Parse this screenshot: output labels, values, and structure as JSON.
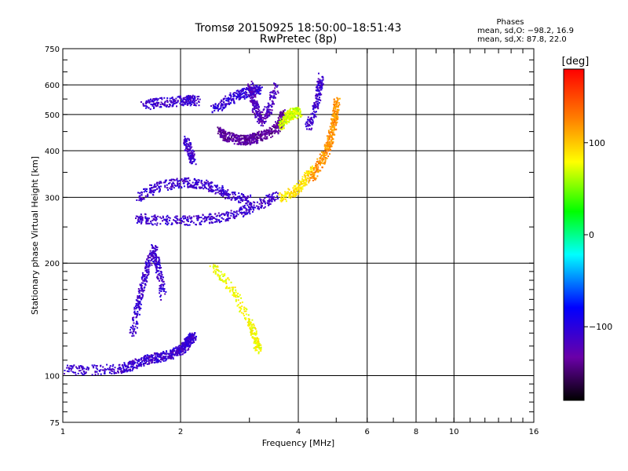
{
  "chart_data": {
    "type": "scatter",
    "title": "Tromsø 20150925 18:50:00–18:51:43",
    "subtitle": "RwPretec (8p)",
    "xlabel": "Frequency [MHz]",
    "ylabel": "Stationary phase Virtual Height [km]",
    "x_scale": "log",
    "y_scale": "log",
    "xlim": [
      1,
      16
    ],
    "ylim": [
      75,
      750
    ],
    "x_ticks": [
      1,
      2,
      4,
      6,
      8,
      10,
      16
    ],
    "x_tick_labels": [
      "1",
      "2",
      "4",
      "6",
      "8",
      "10",
      "16"
    ],
    "y_ticks": [
      75,
      100,
      200,
      300,
      400,
      500,
      600,
      750
    ],
    "y_tick_labels": [
      "75",
      "100",
      "200",
      "300",
      "400",
      "500",
      "600",
      "750"
    ],
    "grid": true,
    "stats": {
      "heading": "Phases",
      "line1": "mean, sd,O: −98.2, 16.9",
      "line2": "mean, sd,X:  87.8, 22.0"
    },
    "colorbar": {
      "label": "[deg]",
      "range": [
        -180,
        180
      ],
      "ticks": [
        100,
        0,
        -100
      ],
      "tick_labels": [
        "100",
        "0",
        "−100"
      ]
    },
    "traces": [
      {
        "x": [
          1.0,
          1.2,
          1.4,
          1.5,
          1.6,
          1.7,
          1.8,
          1.9,
          2.0,
          2.05,
          2.1,
          2.15
        ],
        "y": [
          104,
          104,
          105,
          107,
          110,
          112,
          113,
          115,
          118,
          121,
          125,
          128
        ],
        "phase": -110
      },
      {
        "x": [
          1.5,
          1.55,
          1.6,
          1.65,
          1.7,
          1.75,
          1.8
        ],
        "y": [
          130,
          155,
          175,
          200,
          220,
          195,
          165
        ],
        "phase": -110
      },
      {
        "x": [
          1.55,
          1.7,
          2.0,
          2.3,
          2.6,
          2.9,
          3.2,
          3.5
        ],
        "y": [
          265,
          262,
          261,
          263,
          268,
          277,
          290,
          303
        ],
        "phase": -110
      },
      {
        "x": [
          1.55,
          1.7,
          1.9,
          2.1,
          2.3,
          2.5,
          2.7,
          3.0
        ],
        "y": [
          300,
          318,
          328,
          330,
          325,
          315,
          305,
          295
        ],
        "phase": -110
      },
      {
        "x": [
          1.6,
          1.75,
          1.95,
          2.1,
          2.2
        ],
        "y": [
          530,
          540,
          545,
          548,
          545
        ],
        "phase": -110
      },
      {
        "x": [
          2.05,
          2.1,
          2.15
        ],
        "y": [
          430,
          400,
          380
        ],
        "phase": -110
      },
      {
        "x": [
          2.4,
          2.6,
          2.8,
          3.0,
          3.2
        ],
        "y": [
          515,
          545,
          565,
          580,
          585
        ],
        "phase": -105
      },
      {
        "x": [
          2.5,
          2.6,
          2.75,
          2.9,
          3.0,
          3.1,
          3.3,
          3.5,
          3.6,
          3.65
        ],
        "y": [
          455,
          440,
          432,
          428,
          430,
          435,
          445,
          460,
          480,
          510
        ],
        "phase": -135
      },
      {
        "x": [
          3.0,
          3.05,
          3.1,
          3.2,
          3.35,
          3.5
        ],
        "y": [
          600,
          560,
          520,
          480,
          520,
          600
        ],
        "phase": -120
      },
      {
        "x": [
          3.6,
          3.7,
          3.8,
          3.9,
          4.0
        ],
        "y": [
          470,
          490,
          500,
          510,
          505
        ],
        "phase": 70
      },
      {
        "x": [
          3.6,
          3.9,
          4.1,
          4.3
        ],
        "y": [
          300,
          312,
          330,
          360
        ],
        "phase": 90
      },
      {
        "x": [
          4.2,
          4.4,
          4.5,
          4.55
        ],
        "y": [
          460,
          520,
          580,
          630
        ],
        "phase": -110
      },
      {
        "x": [
          4.3,
          4.5,
          4.7,
          4.8,
          4.9,
          4.95,
          5.0
        ],
        "y": [
          340,
          370,
          400,
          430,
          470,
          500,
          550
        ],
        "phase": 120
      },
      {
        "x": [
          2.4,
          2.7,
          3.0,
          3.1,
          3.15
        ],
        "y": [
          200,
          170,
          140,
          125,
          118
        ],
        "phase": 80
      }
    ]
  }
}
